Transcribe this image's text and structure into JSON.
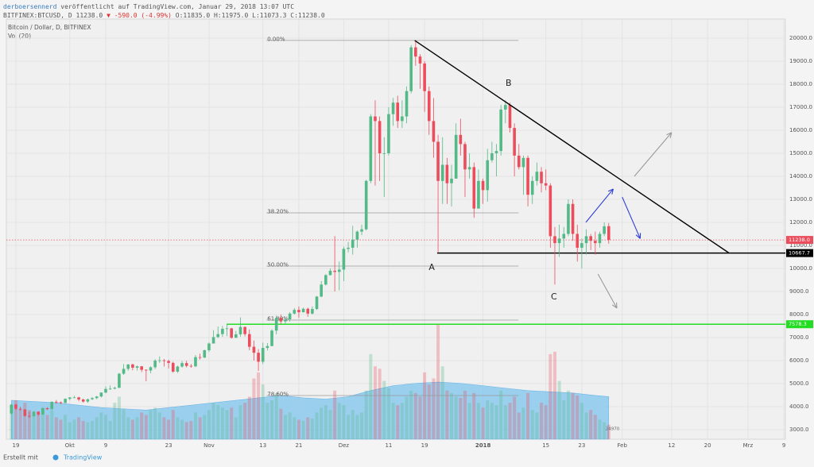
{
  "chart_data": {
    "type": "candlestick",
    "publisher": "derboersennerd",
    "published_note": " veröffentlicht auf TradingView.com, Januar 29, 2018 13:07 UTC",
    "symbol": "BITFINEX:BTCUSD, D",
    "last": "11238.0",
    "change": "▼ -590.0 (-4.99%)",
    "ohlc_text": "O:11835.0 H:11975.0 L:11073.3 C:11238.0",
    "title": "Bitcoin / Dollar, D, BITFINEX",
    "volume_label": "Vol (20)",
    "footer_text": "Erstellt mit",
    "footer_brand": "TradingView",
    "up_color": "#53b987",
    "down_color": "#eb4d5c",
    "grid": true,
    "xlim": [
      -2.12,
      171.33
    ],
    "ylim": [
      2586,
      20828
    ],
    "xticks": [
      {
        "value": 0,
        "label": "19"
      },
      {
        "value": 12,
        "label": "Okt"
      },
      {
        "value": 20,
        "label": "9"
      },
      {
        "value": 34,
        "label": "23"
      },
      {
        "value": 43,
        "label": "Nov"
      },
      {
        "value": 55,
        "label": "13"
      },
      {
        "value": 63,
        "label": "21"
      },
      {
        "value": 73,
        "label": "Dez"
      },
      {
        "value": 83,
        "label": "11"
      },
      {
        "value": 91,
        "label": "19"
      },
      {
        "value": 104,
        "label": "2018"
      },
      {
        "value": 118,
        "label": "15"
      },
      {
        "value": 126,
        "label": "23"
      },
      {
        "value": 135,
        "label": "Feb"
      },
      {
        "value": 146,
        "label": "12"
      },
      {
        "value": 154,
        "label": "20"
      },
      {
        "value": 163,
        "label": "Mrz"
      },
      {
        "value": 171,
        "label": "9"
      }
    ],
    "yticks": [
      {
        "value": 3000,
        "label": "3000.0"
      },
      {
        "value": 4000,
        "label": "4000.0"
      },
      {
        "value": 5000,
        "label": "5000.0"
      },
      {
        "value": 6000,
        "label": "6000.0"
      },
      {
        "value": 7000,
        "label": "7000.0"
      },
      {
        "value": 8000,
        "label": "8000.0"
      },
      {
        "value": 9000,
        "label": "9000.0"
      },
      {
        "value": 10000,
        "label": "10000.0"
      },
      {
        "value": 11000,
        "label": "11000.0"
      },
      {
        "value": 12000,
        "label": "12000.0"
      },
      {
        "value": 13000,
        "label": "13000.0"
      },
      {
        "value": 14000,
        "label": "14000.0"
      },
      {
        "value": 15000,
        "label": "15000.0"
      },
      {
        "value": 16000,
        "label": "16000.0"
      },
      {
        "value": 17000,
        "label": "17000.0"
      },
      {
        "value": 18000,
        "label": "18000.0"
      },
      {
        "value": 19000,
        "label": "19000.0"
      },
      {
        "value": 20000,
        "label": "20000.0"
      }
    ],
    "candles": [
      [
        -1,
        3700,
        4130,
        3650,
        4090
      ],
      [
        0,
        4090,
        4120,
        3850,
        3910
      ],
      [
        1,
        3910,
        4000,
        3830,
        3880
      ],
      [
        2,
        3880,
        3900,
        3570,
        3600
      ],
      [
        3,
        3600,
        3780,
        3510,
        3590
      ],
      [
        4,
        3590,
        3810,
        3560,
        3780
      ],
      [
        5,
        3780,
        3800,
        3600,
        3660
      ],
      [
        6,
        3660,
        3970,
        3650,
        3930
      ],
      [
        7,
        3930,
        3980,
        3850,
        3890
      ],
      [
        8,
        3890,
        4230,
        3880,
        4210
      ],
      [
        9,
        4210,
        4290,
        4120,
        4190
      ],
      [
        10,
        4190,
        4220,
        4100,
        4160
      ],
      [
        11,
        4160,
        4360,
        4150,
        4340
      ],
      [
        12,
        4340,
        4410,
        4280,
        4400
      ],
      [
        13,
        4400,
        4470,
        4370,
        4400
      ],
      [
        14,
        4400,
        4430,
        4230,
        4310
      ],
      [
        15,
        4310,
        4350,
        4170,
        4220
      ],
      [
        16,
        4220,
        4350,
        4160,
        4320
      ],
      [
        17,
        4320,
        4420,
        4290,
        4370
      ],
      [
        18,
        4370,
        4460,
        4320,
        4440
      ],
      [
        19,
        4440,
        4620,
        4400,
        4610
      ],
      [
        20,
        4610,
        4880,
        4580,
        4770
      ],
      [
        21,
        4770,
        4920,
        4730,
        4780
      ],
      [
        22,
        4780,
        4870,
        4750,
        4820
      ],
      [
        23,
        4820,
        5460,
        4800,
        5430
      ],
      [
        24,
        5430,
        5850,
        5380,
        5640
      ],
      [
        25,
        5640,
        5850,
        5560,
        5830
      ],
      [
        26,
        5830,
        5870,
        5580,
        5690
      ],
      [
        27,
        5690,
        5780,
        5570,
        5750
      ],
      [
        28,
        5750,
        5760,
        5500,
        5600
      ],
      [
        29,
        5600,
        5620,
        5100,
        5570
      ],
      [
        30,
        5570,
        5750,
        5450,
        5710
      ],
      [
        31,
        5710,
        6060,
        5630,
        6000
      ],
      [
        32,
        6000,
        6180,
        5900,
        6010
      ],
      [
        33,
        6010,
        6070,
        5740,
        5980
      ],
      [
        34,
        5980,
        6040,
        5660,
        5900
      ],
      [
        35,
        5900,
        5950,
        5470,
        5520
      ],
      [
        36,
        5520,
        5780,
        5460,
        5740
      ],
      [
        37,
        5740,
        5980,
        5690,
        5890
      ],
      [
        38,
        5890,
        5990,
        5700,
        5770
      ],
      [
        39,
        5770,
        5850,
        5690,
        5750
      ],
      [
        40,
        5750,
        6240,
        5710,
        6150
      ],
      [
        41,
        6150,
        6300,
        6040,
        6130
      ],
      [
        42,
        6130,
        6470,
        6110,
        6450
      ],
      [
        43,
        6450,
        6790,
        6370,
        6740
      ],
      [
        44,
        6740,
        7320,
        6740,
        7020
      ],
      [
        45,
        7020,
        7480,
        6980,
        7150
      ],
      [
        46,
        7150,
        7500,
        7030,
        7380
      ],
      [
        47,
        7380,
        7600,
        7060,
        7400
      ],
      [
        48,
        7400,
        7420,
        6950,
        6990
      ],
      [
        49,
        6990,
        7290,
        6980,
        7140
      ],
      [
        50,
        7140,
        7880,
        7040,
        7460
      ],
      [
        51,
        7460,
        7480,
        7050,
        7150
      ],
      [
        52,
        7150,
        7350,
        6450,
        6600
      ],
      [
        53,
        6600,
        6870,
        6000,
        6340
      ],
      [
        54,
        6340,
        6500,
        5550,
        5950
      ],
      [
        55,
        5950,
        6780,
        5850,
        6550
      ],
      [
        56,
        6550,
        6760,
        6440,
        6630
      ],
      [
        57,
        6630,
        7360,
        6630,
        7300
      ],
      [
        58,
        7300,
        7950,
        7140,
        7850
      ],
      [
        59,
        7850,
        8000,
        7600,
        7700
      ],
      [
        60,
        7700,
        7850,
        7550,
        7790
      ],
      [
        61,
        7790,
        8100,
        7690,
        8040
      ],
      [
        62,
        8040,
        8280,
        8000,
        8200
      ],
      [
        63,
        8200,
        8350,
        7850,
        8100
      ],
      [
        64,
        8100,
        8300,
        8090,
        8250
      ],
      [
        65,
        8250,
        8300,
        7900,
        8040
      ],
      [
        66,
        8040,
        8350,
        8000,
        8240
      ],
      [
        67,
        8240,
        8800,
        8200,
        8780
      ],
      [
        68,
        8780,
        9450,
        8750,
        9300
      ],
      [
        69,
        9300,
        9750,
        9260,
        9710
      ],
      [
        70,
        9710,
        10000,
        9700,
        9900
      ],
      [
        71,
        9900,
        11400,
        9000,
        9850
      ],
      [
        72,
        9850,
        10300,
        9050,
        9950
      ],
      [
        73,
        9950,
        10950,
        9450,
        10850
      ],
      [
        74,
        10850,
        11150,
        10700,
        10900
      ],
      [
        75,
        10900,
        11850,
        10600,
        11250
      ],
      [
        76,
        11250,
        11650,
        10900,
        11600
      ],
      [
        77,
        11600,
        11900,
        11450,
        11700
      ],
      [
        78,
        11700,
        13850,
        11650,
        13800
      ],
      [
        79,
        13800,
        16700,
        13700,
        16600
      ],
      [
        80,
        16600,
        17300,
        13600,
        16400
      ],
      [
        81,
        16400,
        16600,
        13800,
        15000
      ],
      [
        82,
        15000,
        15700,
        13100,
        15000
      ],
      [
        83,
        15000,
        17000,
        14900,
        16700
      ],
      [
        84,
        16700,
        17400,
        16200,
        17200
      ],
      [
        85,
        17200,
        17500,
        16100,
        16400
      ],
      [
        86,
        16400,
        17300,
        16100,
        16600
      ],
      [
        87,
        16600,
        17900,
        16300,
        17700
      ],
      [
        88,
        17700,
        19700,
        17600,
        19600
      ],
      [
        89,
        19600,
        19900,
        18800,
        19200
      ],
      [
        90,
        19200,
        19300,
        17800,
        18900
      ],
      [
        91,
        18900,
        19000,
        16800,
        17700
      ],
      [
        92,
        17700,
        17900,
        15800,
        16400
      ],
      [
        93,
        16400,
        17400,
        14800,
        15500
      ],
      [
        94,
        15500,
        15800,
        10700,
        13800
      ],
      [
        95,
        13800,
        15700,
        12800,
        14500
      ],
      [
        96,
        14500,
        14800,
        12800,
        13700
      ],
      [
        97,
        13700,
        14500,
        12700,
        13900
      ],
      [
        98,
        13900,
        16300,
        13900,
        15800
      ],
      [
        99,
        15800,
        16500,
        14900,
        15400
      ],
      [
        100,
        15400,
        15500,
        13100,
        14300
      ],
      [
        101,
        14300,
        15000,
        13900,
        14400
      ],
      [
        102,
        14400,
        14600,
        12200,
        12600
      ],
      [
        103,
        12600,
        14300,
        12600,
        13800
      ],
      [
        104,
        13800,
        13900,
        12800,
        13400
      ],
      [
        105,
        13400,
        15200,
        12900,
        14700
      ],
      [
        106,
        14700,
        15500,
        14600,
        15000
      ],
      [
        107,
        15000,
        15400,
        14000,
        15100
      ],
      [
        108,
        15100,
        17100,
        14900,
        16900
      ],
      [
        109,
        16900,
        17300,
        16300,
        17100
      ],
      [
        110,
        17100,
        17200,
        15900,
        16100
      ],
      [
        111,
        16100,
        16300,
        14000,
        14900
      ],
      [
        112,
        14900,
        15400,
        14300,
        14400
      ],
      [
        113,
        14400,
        14900,
        13200,
        14800
      ],
      [
        114,
        14800,
        14900,
        12700,
        13200
      ],
      [
        115,
        13200,
        14000,
        12800,
        13800
      ],
      [
        116,
        13800,
        14600,
        13600,
        14200
      ],
      [
        117,
        14200,
        14400,
        13300,
        13700
      ],
      [
        118,
        13700,
        14300,
        13400,
        13600
      ],
      [
        119,
        13600,
        13700,
        10900,
        11400
      ],
      [
        120,
        11400,
        11800,
        9300,
        11100
      ],
      [
        121,
        11100,
        11900,
        10500,
        11300
      ],
      [
        122,
        11300,
        11800,
        10900,
        11500
      ],
      [
        123,
        11500,
        13000,
        11400,
        12800
      ],
      [
        124,
        12800,
        13000,
        11200,
        11500
      ],
      [
        125,
        11500,
        11900,
        10300,
        10900
      ],
      [
        126,
        10900,
        11300,
        10000,
        11100
      ],
      [
        127,
        11100,
        11700,
        10600,
        11400
      ],
      [
        128,
        11400,
        11500,
        10800,
        11200
      ],
      [
        129,
        11200,
        11600,
        10600,
        11100
      ],
      [
        130,
        11100,
        11600,
        10900,
        11500
      ],
      [
        131,
        11500,
        12000,
        11400,
        11830
      ],
      [
        132,
        11835,
        11975,
        11073.3,
        11238
      ]
    ],
    "volume": {
      "ylim": [
        0,
        100
      ],
      "values": [
        28,
        32,
        25,
        30,
        24,
        20,
        22,
        26,
        20,
        24,
        18,
        16,
        20,
        14,
        16,
        18,
        15,
        14,
        15,
        18,
        22,
        20,
        15,
        30,
        35,
        25,
        18,
        16,
        18,
        22,
        20,
        24,
        26,
        22,
        18,
        16,
        24,
        18,
        16,
        14,
        15,
        22,
        18,
        20,
        24,
        30,
        28,
        26,
        24,
        26,
        18,
        28,
        30,
        35,
        50,
        55,
        45,
        30,
        32,
        38,
        25,
        20,
        22,
        18,
        16,
        15,
        18,
        17,
        22,
        26,
        28,
        24,
        40,
        30,
        28,
        20,
        24,
        20,
        22,
        40,
        70,
        60,
        58,
        48,
        42,
        30,
        28,
        30,
        35,
        40,
        38,
        35,
        55,
        45,
        50,
        95,
        60,
        40,
        38,
        35,
        34,
        40,
        30,
        38,
        30,
        26,
        32,
        30,
        28,
        40,
        28,
        30,
        35,
        22,
        26,
        38,
        24,
        22,
        30,
        28,
        70,
        72,
        48,
        32,
        40,
        38,
        36,
        30,
        22,
        24,
        20,
        16,
        14,
        12
      ],
      "ma_x": [
        -1,
        4,
        9,
        14,
        19,
        24,
        29,
        34,
        39,
        44,
        49,
        54,
        59,
        64,
        69,
        74,
        79,
        84,
        89,
        94,
        99,
        104,
        109,
        114,
        119,
        124,
        129,
        132
      ],
      "ma": [
        32,
        31,
        30,
        28,
        26,
        25,
        24,
        26,
        28,
        30,
        32,
        34,
        36,
        34,
        33,
        35,
        40,
        44,
        46,
        47,
        46,
        44,
        42,
        40,
        39,
        38,
        36,
        35
      ],
      "ma_color": "#7fc4ee",
      "last_label": "24970"
    },
    "fib": {
      "x": [
        55.8,
        111.9
      ],
      "color": "#9a9a9a",
      "levels": [
        {
          "value": 19900,
          "label": "0.00%"
        },
        {
          "value": 12414,
          "label": "38.20%"
        },
        {
          "value": 10103,
          "label": "50.00%"
        },
        {
          "value": 7759,
          "label": "61.80%"
        },
        {
          "value": 4483,
          "label": "78.60%"
        }
      ]
    },
    "hlines": [
      {
        "value": 11238,
        "label": "11238.0",
        "color": "#eb4d5c",
        "style": "dotted"
      },
      {
        "value": 10667.7,
        "label": "10667.7",
        "color": "#000000",
        "x_start": 93.8
      },
      {
        "value": 7578.3,
        "label": "7578.3",
        "color": "#22dd22",
        "x_start": 46.9
      }
    ],
    "drawings": [
      {
        "x": [
          88.8,
          158.8
        ],
        "y": [
          19900,
          10667.7
        ],
        "color": "#000000"
      },
      {
        "x": [
          137.7,
          146
        ],
        "y": [
          14000,
          15900
        ],
        "color": "#9a9a9a",
        "arrow": true
      },
      {
        "x": [
          126.9,
          133
        ],
        "y": [
          12000,
          13450
        ],
        "color": "#2f3fd8",
        "arrow": true
      },
      {
        "x": [
          135,
          139
        ],
        "y": [
          13100,
          11300
        ],
        "color": "#2f3fd8",
        "arrow": true
      },
      {
        "x": [
          129.6,
          133.8
        ],
        "y": [
          9760,
          8280
        ],
        "color": "#9a9a9a",
        "arrow": true
      }
    ],
    "annotations": [
      {
        "text": "A",
        "x": 92.6,
        "y": 10035
      },
      {
        "text": "B",
        "x": 109.7,
        "y": 18030
      },
      {
        "text": "C",
        "x": 119.8,
        "y": 8760
      }
    ]
  }
}
